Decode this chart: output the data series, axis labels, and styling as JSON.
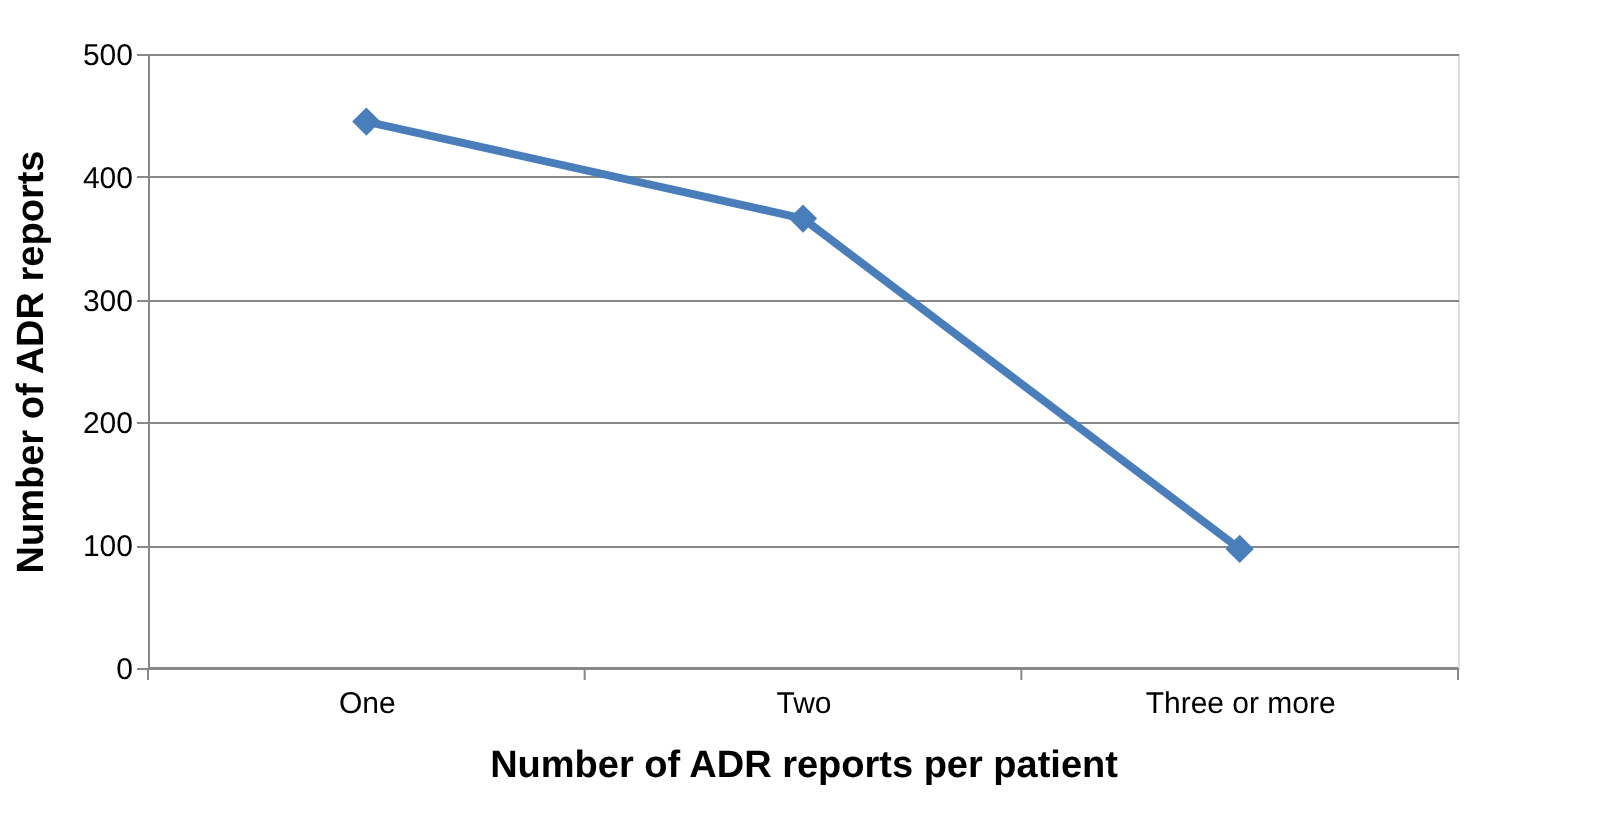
{
  "chart_data": {
    "type": "line",
    "xlabel": "Number of ADR reports per patient",
    "ylabel": "Number of ADR reports",
    "categories": [
      "One",
      "Two",
      "Three or more"
    ],
    "series": [
      {
        "color": "#4a7ebb",
        "values": [
          445,
          366,
          97
        ]
      }
    ],
    "ylim": [
      0,
      500
    ],
    "yticks": [
      0,
      100,
      200,
      300,
      400,
      500
    ],
    "grid": "y",
    "marker": "diamond",
    "line_style": "solid",
    "legend": false
  }
}
